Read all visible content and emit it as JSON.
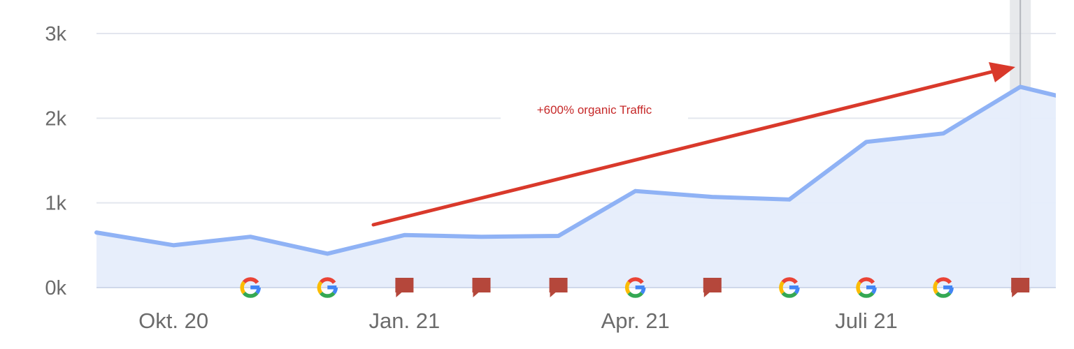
{
  "chart_data": {
    "type": "area",
    "title": "",
    "xlabel": "",
    "ylabel": "",
    "ylim": [
      0,
      3000
    ],
    "grid": true,
    "yticks": [
      {
        "value": 0,
        "label": "0k"
      },
      {
        "value": 1000,
        "label": "1k"
      },
      {
        "value": 2000,
        "label": "2k"
      },
      {
        "value": 3000,
        "label": "3k"
      }
    ],
    "xticks": [
      {
        "index": 1,
        "label": "Okt. 20"
      },
      {
        "index": 4,
        "label": "Jan. 21"
      },
      {
        "index": 7,
        "label": "Apr. 21"
      },
      {
        "index": 10,
        "label": "Juli 21"
      }
    ],
    "series": [
      {
        "values": [
          650,
          500,
          600,
          400,
          620,
          600,
          610,
          1140,
          1070,
          1040,
          1720,
          1820,
          2370,
          2150
        ],
        "color": "#8fb2f5",
        "fill": "#e6edfb"
      }
    ],
    "markers": [
      {
        "index": 2,
        "icon": "google-icon"
      },
      {
        "index": 3,
        "icon": "google-icon"
      },
      {
        "index": 4,
        "icon": "note-flag-icon"
      },
      {
        "index": 5,
        "icon": "note-flag-icon"
      },
      {
        "index": 6,
        "icon": "note-flag-icon"
      },
      {
        "index": 7,
        "icon": "google-icon"
      },
      {
        "index": 8,
        "icon": "note-flag-icon"
      },
      {
        "index": 9,
        "icon": "google-icon"
      },
      {
        "index": 10,
        "icon": "google-icon"
      },
      {
        "index": 11,
        "icon": "google-icon"
      },
      {
        "index": 12,
        "icon": "note-flag-icon"
      }
    ],
    "annotation": {
      "text": "+600% organic Traffic",
      "color": "#c62828"
    },
    "gridline_color": "#e3e6ee",
    "hover_index": 12
  }
}
